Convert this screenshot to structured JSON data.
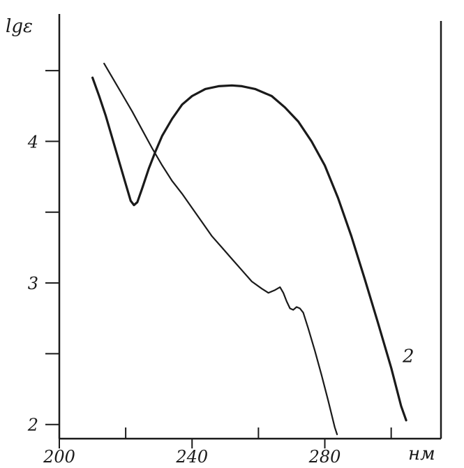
{
  "chart_data": {
    "type": "line",
    "title": "",
    "xlabel": "нм",
    "ylabel": "lgε",
    "xlim": [
      200,
      315
    ],
    "ylim": [
      1.9,
      4.9
    ],
    "x_ticks": [
      200,
      240,
      280
    ],
    "x_minor_ticks": [
      220,
      260,
      300
    ],
    "y_ticks": [
      2,
      3,
      4
    ],
    "y_minor_ticks": [
      2.5,
      3.5,
      4.5
    ],
    "grid": false,
    "series": [
      {
        "curve_label": "",
        "points": [
          [
            213.5,
            4.55
          ],
          [
            216,
            4.45
          ],
          [
            219,
            4.33
          ],
          [
            222,
            4.21
          ],
          [
            225,
            4.08
          ],
          [
            228,
            3.95
          ],
          [
            231,
            3.83
          ],
          [
            234,
            3.72
          ],
          [
            237,
            3.63
          ],
          [
            240,
            3.53
          ],
          [
            243,
            3.43
          ],
          [
            246,
            3.33
          ],
          [
            249,
            3.25
          ],
          [
            252,
            3.17
          ],
          [
            255,
            3.09
          ],
          [
            258,
            3.01
          ],
          [
            261,
            2.96
          ],
          [
            263,
            2.93
          ],
          [
            265,
            2.95
          ],
          [
            266.5,
            2.97
          ],
          [
            267.5,
            2.93
          ],
          [
            268.5,
            2.87
          ],
          [
            269.5,
            2.82
          ],
          [
            270.5,
            2.81
          ],
          [
            271.5,
            2.83
          ],
          [
            272.5,
            2.82
          ],
          [
            273.5,
            2.79
          ],
          [
            275,
            2.68
          ],
          [
            277,
            2.52
          ],
          [
            279,
            2.35
          ],
          [
            281,
            2.17
          ],
          [
            283,
            1.98
          ],
          [
            283.7,
            1.93
          ]
        ]
      },
      {
        "curve_label": "2",
        "points": [
          [
            210,
            4.45
          ],
          [
            212,
            4.32
          ],
          [
            214,
            4.18
          ],
          [
            216,
            4.02
          ],
          [
            218,
            3.86
          ],
          [
            220,
            3.7
          ],
          [
            221.5,
            3.58
          ],
          [
            222.5,
            3.55
          ],
          [
            223.5,
            3.57
          ],
          [
            225,
            3.67
          ],
          [
            227,
            3.81
          ],
          [
            229,
            3.93
          ],
          [
            231,
            4.04
          ],
          [
            234,
            4.16
          ],
          [
            237,
            4.26
          ],
          [
            240,
            4.32
          ],
          [
            244,
            4.37
          ],
          [
            248,
            4.39
          ],
          [
            252,
            4.395
          ],
          [
            255,
            4.39
          ],
          [
            259,
            4.37
          ],
          [
            264,
            4.32
          ],
          [
            268,
            4.24
          ],
          [
            272,
            4.14
          ],
          [
            276,
            4.0
          ],
          [
            280,
            3.83
          ],
          [
            284,
            3.6
          ],
          [
            288,
            3.33
          ],
          [
            292,
            3.03
          ],
          [
            296,
            2.72
          ],
          [
            300,
            2.4
          ],
          [
            303,
            2.13
          ],
          [
            304.5,
            2.03
          ]
        ]
      }
    ]
  }
}
